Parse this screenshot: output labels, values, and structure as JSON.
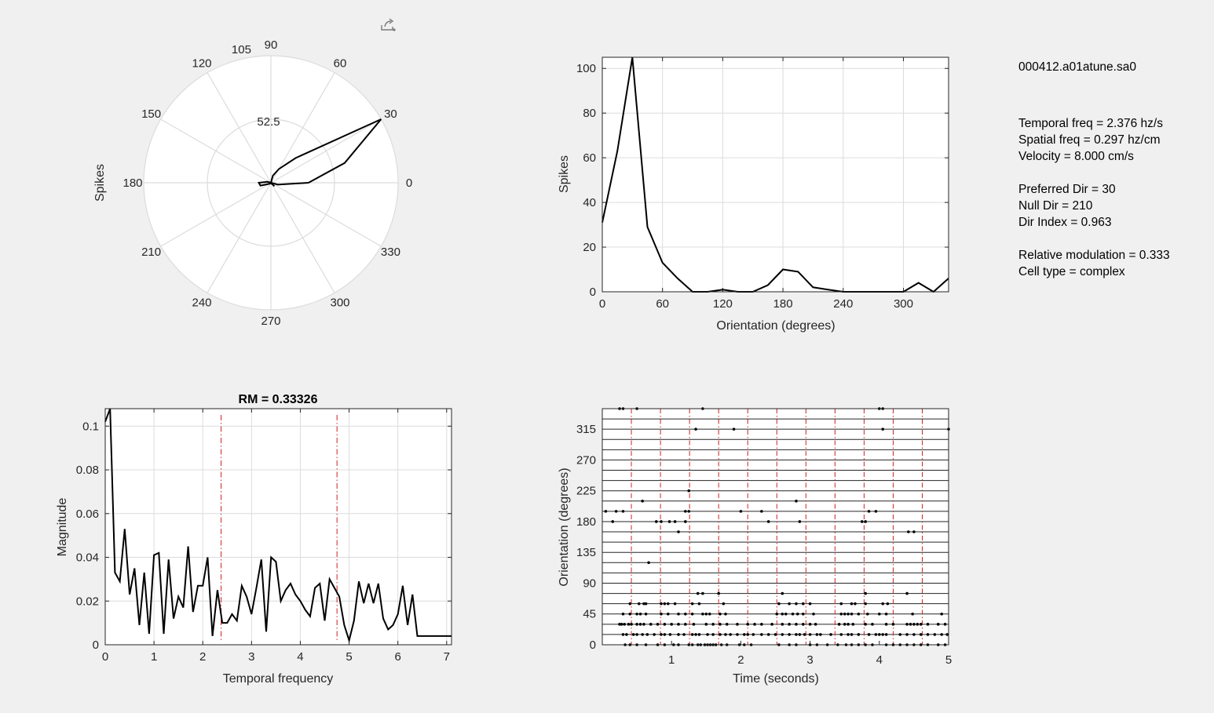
{
  "toolbar": {
    "export_icon": "export-icon"
  },
  "info": {
    "filename": "000412.a01atune.sa0",
    "temporal_freq": "Temporal freq = 2.376 hz/s",
    "spatial_freq": "Spatial freq = 0.297 hz/cm",
    "velocity": "Velocity = 8.000 cm/s",
    "preferred_dir": "Preferred Dir = 30",
    "null_dir": "Null Dir = 210",
    "dir_index": "Dir Index = 0.963",
    "relative_modulation": "Relative modulation = 0.333",
    "cell_type": "Cell type = complex"
  },
  "colors": {
    "line": "#000000",
    "grid": "#dcdcdc",
    "marker_red": "#cc2222",
    "axes_bg": "#ffffff"
  },
  "chart_data": [
    {
      "type": "polar",
      "ylabel": "Spikes",
      "theta_ticks": [
        0,
        30,
        60,
        90,
        120,
        150,
        180,
        210,
        240,
        270,
        300,
        330
      ],
      "r_label": "52.5",
      "r_label_angle": "105",
      "r_max": 105,
      "r_rings": [
        52.5,
        105
      ],
      "theta": [
        0,
        15,
        30,
        45,
        60,
        75,
        90,
        105,
        120,
        135,
        150,
        165,
        180,
        195,
        210,
        225,
        240,
        255,
        270,
        285,
        300,
        315,
        330,
        345
      ],
      "r": [
        31,
        63,
        105,
        29,
        13,
        6,
        0,
        0,
        1,
        0,
        0,
        3,
        10,
        9,
        2,
        1,
        0,
        0,
        0,
        0,
        0,
        4,
        0,
        6
      ]
    },
    {
      "type": "line",
      "xlabel": "Orientation (degrees)",
      "ylabel": "Spikes",
      "xlim": [
        0,
        345
      ],
      "ylim": [
        0,
        105
      ],
      "xticks": [
        0,
        60,
        120,
        180,
        240,
        300
      ],
      "yticks": [
        0,
        20,
        40,
        60,
        80,
        100
      ],
      "x": [
        0,
        15,
        30,
        45,
        60,
        75,
        90,
        105,
        120,
        135,
        150,
        165,
        180,
        195,
        210,
        225,
        240,
        255,
        270,
        285,
        300,
        315,
        330,
        345
      ],
      "y": [
        31,
        63,
        105,
        29,
        13,
        6,
        0,
        0,
        1,
        0,
        0,
        3,
        10,
        9,
        2,
        1,
        0,
        0,
        0,
        0,
        0,
        4,
        0,
        6
      ]
    },
    {
      "type": "line",
      "title": "RM = 0.33326",
      "xlabel": "Temporal frequency",
      "ylabel": "Magnitude",
      "xlim": [
        0,
        7.1
      ],
      "ylim": [
        0,
        0.108
      ],
      "xticks": [
        0,
        1,
        2,
        3,
        4,
        5,
        6,
        7
      ],
      "yticks": [
        0,
        0.02,
        0.04,
        0.06,
        0.08,
        0.1
      ],
      "ytick_labels": [
        "0",
        "0.02",
        "0.04",
        "0.06",
        "0.08",
        "0.1"
      ],
      "vlines": [
        2.376,
        4.752
      ],
      "x": [
        0,
        0.1,
        0.2,
        0.3,
        0.4,
        0.5,
        0.6,
        0.7,
        0.8,
        0.9,
        1.0,
        1.1,
        1.2,
        1.3,
        1.4,
        1.5,
        1.6,
        1.7,
        1.8,
        1.9,
        2.0,
        2.1,
        2.2,
        2.3,
        2.4,
        2.5,
        2.6,
        2.7,
        2.8,
        2.9,
        3.0,
        3.1,
        3.2,
        3.3,
        3.4,
        3.5,
        3.6,
        3.7,
        3.8,
        3.9,
        4.0,
        4.1,
        4.2,
        4.3,
        4.4,
        4.5,
        4.6,
        4.7,
        4.8,
        4.9,
        5.0,
        5.1,
        5.2,
        5.3,
        5.4,
        5.5,
        5.6,
        5.7,
        5.8,
        5.9,
        6.0,
        6.1,
        6.2,
        6.3,
        6.4,
        6.5,
        6.6,
        6.7,
        6.8,
        6.9,
        7.0,
        7.1
      ],
      "y": [
        0.102,
        0.108,
        0.033,
        0.029,
        0.053,
        0.023,
        0.035,
        0.009,
        0.033,
        0.005,
        0.041,
        0.042,
        0.005,
        0.039,
        0.012,
        0.022,
        0.017,
        0.045,
        0.015,
        0.027,
        0.027,
        0.04,
        0.004,
        0.025,
        0.01,
        0.01,
        0.014,
        0.011,
        0.027,
        0.022,
        0.014,
        0.026,
        0.039,
        0.006,
        0.04,
        0.038,
        0.02,
        0.025,
        0.028,
        0.023,
        0.02,
        0.016,
        0.013,
        0.026,
        0.028,
        0.011,
        0.03,
        0.026,
        0.022,
        0.009,
        0.002,
        0.011,
        0.029,
        0.019,
        0.028,
        0.019,
        0.028,
        0.012,
        0.007,
        0.009,
        0.014,
        0.027,
        0.009,
        0.023,
        0.004,
        0.004,
        0.004,
        0.004,
        0.004,
        0.004,
        0.004,
        0.004
      ]
    },
    {
      "type": "scatter",
      "xlabel": "Time (seconds)",
      "ylabel": "Orientation (degrees)",
      "xlim": [
        0,
        5
      ],
      "ylim": [
        0,
        345
      ],
      "xticks": [
        1,
        2,
        3,
        4,
        5
      ],
      "yticks": [
        0,
        45,
        90,
        135,
        180,
        225,
        270,
        315
      ],
      "row_spacing": 15,
      "vlines": [
        0.42,
        0.84,
        1.26,
        1.68,
        2.1,
        2.52,
        2.94,
        3.36,
        3.78,
        4.2,
        4.62
      ],
      "spikes": [
        {
          "o": 0,
          "t": [
            0.33,
            0.4,
            0.5,
            0.63,
            0.8,
            0.9,
            1.03,
            1.1,
            1.25,
            1.3,
            1.38,
            1.42,
            1.48,
            1.52,
            1.56,
            1.6,
            1.64,
            1.72,
            1.8,
            1.98,
            2.05,
            2.15,
            2.55,
            2.7,
            2.8,
            3.0,
            3.1,
            3.25,
            3.4,
            3.52,
            3.6,
            3.7,
            3.8,
            3.9,
            4.1,
            4.2,
            4.3,
            4.4,
            4.5,
            4.6,
            4.7,
            4.85,
            4.95
          ]
        },
        {
          "o": 15,
          "t": [
            0.3,
            0.35,
            0.45,
            0.5,
            0.58,
            0.65,
            0.75,
            0.85,
            0.9,
            0.98,
            1.1,
            1.18,
            1.3,
            1.35,
            1.4,
            1.52,
            1.6,
            1.7,
            1.78,
            1.85,
            1.95,
            2.05,
            2.1,
            2.18,
            2.3,
            2.4,
            2.5,
            2.6,
            2.7,
            2.8,
            2.85,
            2.92,
            3.0,
            3.1,
            3.15,
            3.3,
            3.45,
            3.55,
            3.6,
            3.7,
            3.85,
            3.95,
            4.0,
            4.05,
            4.1,
            4.3,
            4.4,
            4.5,
            4.6,
            4.7,
            4.8,
            4.9,
            4.98
          ]
        },
        {
          "o": 30,
          "t": [
            0.25,
            0.28,
            0.32,
            0.38,
            0.42,
            0.5,
            0.55,
            0.6,
            0.7,
            0.8,
            0.9,
            1.0,
            1.1,
            1.2,
            1.32,
            1.5,
            1.6,
            1.7,
            1.8,
            1.95,
            2.1,
            2.2,
            2.3,
            2.45,
            2.6,
            2.7,
            2.8,
            2.9,
            3.0,
            3.08,
            3.42,
            3.5,
            3.55,
            3.62,
            3.8,
            3.9,
            4.1,
            4.2,
            4.4,
            4.45,
            4.5,
            4.55,
            4.6,
            4.7,
            4.85,
            4.95
          ]
        },
        {
          "o": 45,
          "t": [
            0.3,
            0.4,
            0.5,
            0.55,
            0.63,
            0.85,
            0.95,
            1.1,
            1.2,
            1.3,
            1.45,
            1.5,
            1.55,
            1.7,
            1.78,
            2.52,
            2.6,
            2.65,
            2.75,
            2.82,
            2.9,
            3.05,
            3.45,
            3.5,
            3.55,
            3.6,
            3.7,
            3.83,
            4.0,
            4.1,
            4.48,
            4.9
          ]
        },
        {
          "o": 60,
          "t": [
            0.4,
            0.53,
            0.6,
            0.63,
            0.85,
            0.9,
            0.95,
            1.05,
            1.3,
            1.4,
            1.75,
            2.55,
            2.7,
            2.8,
            2.9,
            3.0,
            3.45,
            3.6,
            3.65,
            3.8,
            4.05,
            4.12
          ]
        },
        {
          "o": 75,
          "t": [
            1.38,
            1.45,
            1.68,
            2.6,
            3.8,
            4.4
          ]
        },
        {
          "o": 120,
          "t": [
            0.67
          ]
        },
        {
          "o": 165,
          "t": [
            1.1,
            4.42,
            4.5
          ]
        },
        {
          "o": 180,
          "t": [
            0.15,
            0.78,
            0.85,
            0.97,
            1.05,
            1.2,
            2.4,
            2.85,
            3.75,
            3.8
          ]
        },
        {
          "o": 195,
          "t": [
            0.05,
            0.2,
            0.3,
            1.2,
            1.25,
            2.0,
            2.3,
            3.85,
            3.95
          ]
        },
        {
          "o": 210,
          "t": [
            0.58,
            2.8
          ]
        },
        {
          "o": 225,
          "t": [
            1.25
          ]
        },
        {
          "o": 315,
          "t": [
            1.35,
            1.9,
            4.05,
            5.0
          ]
        },
        {
          "o": 345,
          "t": [
            0.25,
            0.3,
            0.5,
            1.45,
            4.0,
            4.05
          ]
        }
      ]
    }
  ]
}
